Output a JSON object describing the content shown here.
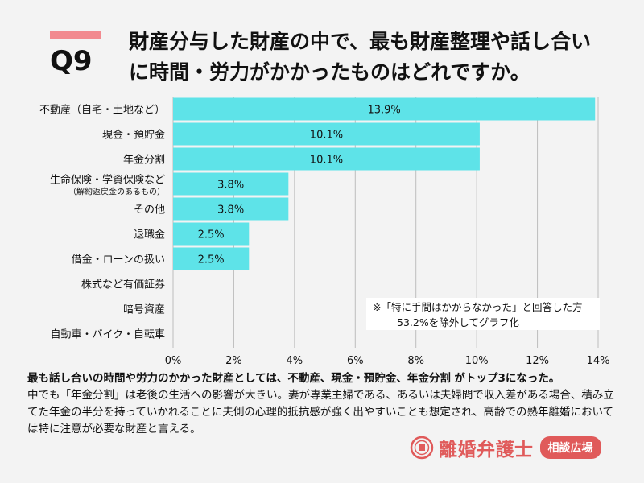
{
  "question": {
    "number": "Q9",
    "title_line1": "財産分与した財産の中で、最も財産整理や話し合い",
    "title_line2": "に時間・労力がかかったものはどれですか。"
  },
  "chart_data": {
    "type": "bar",
    "orientation": "horizontal",
    "categories": [
      {
        "label": "不動産（自宅・土地など）",
        "sub": ""
      },
      {
        "label": "現金・預貯金",
        "sub": ""
      },
      {
        "label": "年金分割",
        "sub": ""
      },
      {
        "label": "生命保険・学資保険など",
        "sub": "（解約返戻金のあるもの）"
      },
      {
        "label": "その他",
        "sub": ""
      },
      {
        "label": "退職金",
        "sub": ""
      },
      {
        "label": "借金・ローンの扱い",
        "sub": ""
      },
      {
        "label": "株式など有価証券",
        "sub": ""
      },
      {
        "label": "暗号資産",
        "sub": ""
      },
      {
        "label": "自動車・バイク・自転車",
        "sub": ""
      }
    ],
    "values": [
      13.9,
      10.1,
      10.1,
      3.8,
      3.8,
      2.5,
      2.5,
      null,
      null,
      null
    ],
    "data_labels": [
      "13.9%",
      "10.1%",
      "10.1%",
      "3.8%",
      "3.8%",
      "2.5%",
      "2.5%",
      "",
      "",
      ""
    ],
    "xlim": [
      0,
      14
    ],
    "xticks": [
      0,
      2,
      4,
      6,
      8,
      10,
      12,
      14
    ],
    "xtick_labels": [
      "0%",
      "2%",
      "4%",
      "6%",
      "8%",
      "10%",
      "12%",
      "14%"
    ],
    "grid": "vertical",
    "bar_color": "#5ee3e8",
    "grid_color": "#bdbdbd"
  },
  "note": {
    "line1": "※「特に手間はかからなかった」と回答した方",
    "line2": "53.2%を除外してグラフ化"
  },
  "summary": {
    "headline": "最も話し合いの時間や労力のかかった財産としては、不動産、現金・預貯金、年金分割 がトップ3になった。",
    "body": "中でも「年金分割」は老後の生活への影響が大きい。妻が専業主婦である、あるいは夫婦間で収入差がある場合、積み立てた年金の半分を持っていかれることに夫側の心理的抵抗感が強く出やすいことも想定され、高齢での熟年離婚においては特に注意が必要な財産と言える。"
  },
  "brand": {
    "name": "離婚弁護士",
    "badge": "相談広場",
    "accent": "#e05a5a"
  }
}
